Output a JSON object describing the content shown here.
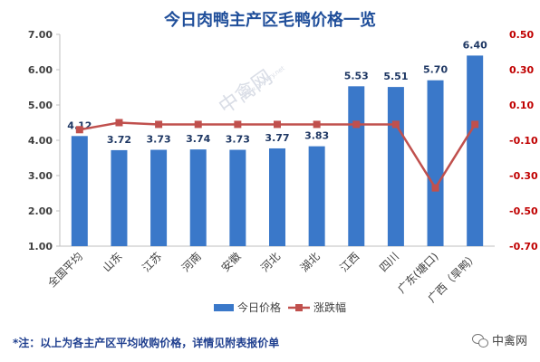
{
  "chart_data": {
    "type": "bar",
    "title": "今日肉鸭主产区毛鸭价格一览",
    "categories": [
      "全国平均",
      "山东",
      "江苏",
      "河南",
      "安徽",
      "河北",
      "湖北",
      "江西",
      "四川",
      "广东(塘口)",
      "广西（旱鸭）"
    ],
    "series": [
      {
        "name": "今日价格",
        "kind": "bar",
        "axis": "left",
        "color": "#3a78c9",
        "values": [
          4.12,
          3.72,
          3.73,
          3.74,
          3.73,
          3.77,
          3.83,
          5.53,
          5.51,
          5.7,
          6.4
        ],
        "labels": [
          "4.12",
          "3.72",
          "3.73",
          "3.74",
          "3.73",
          "3.77",
          "3.83",
          "5.53",
          "5.51",
          "5.70",
          "6.40"
        ]
      },
      {
        "name": "涨跌幅",
        "kind": "line",
        "axis": "right",
        "color": "#c0504d",
        "values": [
          -0.04,
          0.0,
          -0.01,
          -0.01,
          -0.01,
          -0.01,
          -0.01,
          -0.01,
          -0.01,
          -0.37,
          -0.01
        ]
      }
    ],
    "y_left": {
      "min": 1.0,
      "max": 7.0,
      "ticks": [
        "1.00",
        "2.00",
        "3.00",
        "4.00",
        "5.00",
        "6.00",
        "7.00"
      ]
    },
    "y_right": {
      "min": -0.7,
      "max": 0.5,
      "ticks": [
        "-0.70",
        "-0.50",
        "-0.30",
        "-0.10",
        "0.10",
        "0.30",
        "0.50"
      ],
      "color": "#c00000"
    },
    "grid": false,
    "legend": "bottom-center"
  },
  "watermark": {
    "text": "中禽网",
    "subtext": "www.poultry.net"
  },
  "footnote": "*注：以上为各主产区平均收购价格，详情见附表报价单",
  "brand": {
    "name": "中禽网",
    "icon": "wechat-icon"
  }
}
